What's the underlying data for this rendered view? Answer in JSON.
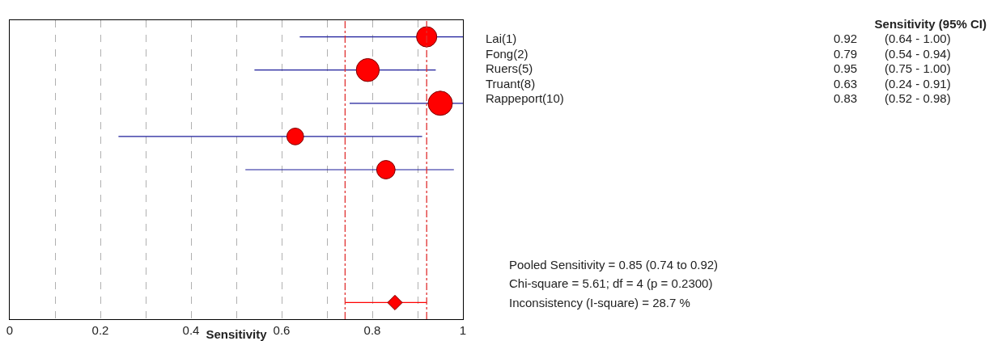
{
  "chart_data": [
    {
      "type": "bubble",
      "orientation": "horizontal",
      "xlabel": "Sensitivity",
      "categories": [
        null,
        null,
        null,
        null,
        null,
        null,
        null,
        null,
        null
      ],
      "series": [
        {
          "color": "#ff0000",
          "values": [
            0.92,
            0.79,
            0.95,
            0.63,
            0.83,
            null,
            null,
            null,
            null
          ],
          "sizes": [
            0.7,
            0.9,
            1,
            0.48,
            0.58,
            null,
            null,
            null,
            null
          ],
          "errors": [
            [
              0.64,
              1.0
            ],
            [
              0.54,
              0.94
            ],
            [
              0.75,
              1.0
            ],
            [
              0.24,
              0.91
            ],
            [
              0.52,
              0.98
            ],
            null,
            null,
            null,
            null
          ]
        },
        {
          "type": "scatter",
          "marker": "diamond",
          "color": "#ff0000",
          "values": [
            null,
            null,
            null,
            null,
            null,
            null,
            null,
            null,
            0.85
          ],
          "errors": [
            null,
            null,
            null,
            null,
            null,
            null,
            null,
            null,
            [
              0.74,
              0.92
            ]
          ]
        }
      ],
      "xlim": [
        0,
        1
      ],
      "xticks": [
        0,
        {
          "value": 0.1,
          "label": null
        },
        0.2,
        {
          "value": 0.3,
          "label": null
        },
        0.4,
        {
          "value": 0.5,
          "label": null
        },
        0.6,
        {
          "value": 0.7,
          "label": null
        },
        0.8,
        {
          "value": 0.9,
          "label": null
        },
        1
      ],
      "grid": "x",
      "tick_labels": "x",
      "ref_lines": [
        {
          "axis": "x",
          "value": 0.74,
          "color": "#e03030",
          "line_style": "dashed"
        },
        {
          "axis": "x",
          "value": 0.92,
          "color": "#e03030",
          "line_style": "dashed"
        }
      ],
      "annotations": [
        "Pooled Sensitivity = 0.85 (0.74 to 0.92)",
        "Chi-square = 5.61; df = 4 (p = 0.2300)",
        "Inconsistency (I-square) = 28.7 %"
      ]
    },
    {
      "type": "other",
      "title": "Sensitivity (95% CI)",
      "annotations": [
        "Lai(1)",
        "0.92",
        "(0.64 - 1.00)",
        "Fong(2)",
        "0.79",
        "(0.54 - 0.94)",
        "Ruers(5)",
        "0.95",
        "(0.75 - 1.00)",
        "Truant(8)",
        "0.63",
        "(0.24 - 0.91)",
        "Rappeport(10)",
        "0.83",
        "(0.52 - 0.98)"
      ]
    }
  ]
}
